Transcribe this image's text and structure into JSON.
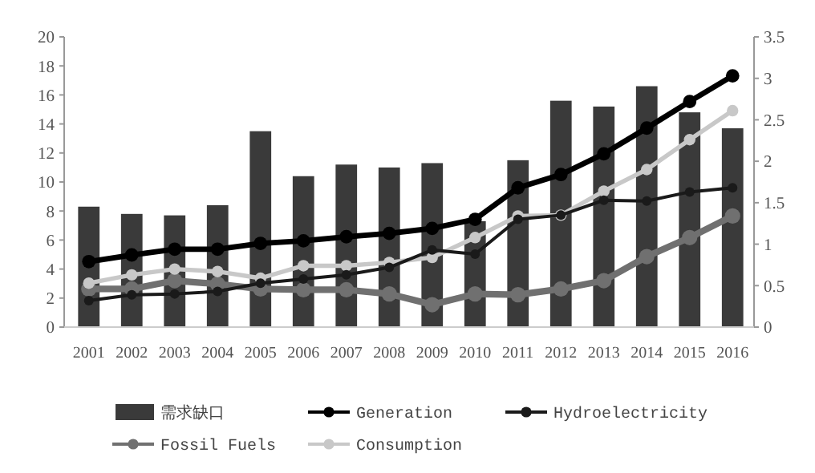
{
  "chart_data": {
    "type": "bar",
    "categories": [
      "2001",
      "2002",
      "2003",
      "2004",
      "2005",
      "2006",
      "2007",
      "2008",
      "2009",
      "2010",
      "2011",
      "2012",
      "2013",
      "2014",
      "2015",
      "2016"
    ],
    "ylim": [
      0,
      20
    ],
    "yticks": [
      0,
      2,
      4,
      6,
      8,
      10,
      12,
      14,
      16,
      18,
      20
    ],
    "y2lim": [
      0,
      3.5
    ],
    "y2ticks": [
      0,
      0.5,
      1,
      1.5,
      2,
      2.5,
      3,
      3.5
    ],
    "legend": "bottom",
    "grid": false,
    "marker": "circle",
    "series": [
      {
        "name": "需求缺口",
        "color": "#3a3a3a",
        "values": [
          8.3,
          7.8,
          7.7,
          8.4,
          13.5,
          10.4,
          11.2,
          11.0,
          11.3,
          7.3,
          11.5,
          15.6,
          15.2,
          16.6,
          14.8,
          13.7
        ]
      },
      {
        "name": "Fossil Fuels",
        "type": "line",
        "axis": "y2",
        "color": "#707070",
        "values": [
          0.46,
          0.46,
          0.56,
          0.52,
          0.46,
          0.45,
          0.45,
          0.4,
          0.27,
          0.4,
          0.39,
          0.46,
          0.56,
          0.85,
          1.08,
          1.34
        ]
      },
      {
        "name": "Generation",
        "type": "line",
        "axis": "y2",
        "color": "#000000",
        "values": [
          0.79,
          0.87,
          0.94,
          0.94,
          1.01,
          1.04,
          1.09,
          1.13,
          1.19,
          1.3,
          1.68,
          1.84,
          2.09,
          2.4,
          2.72,
          3.03
        ]
      },
      {
        "name": "Consumption",
        "type": "line",
        "axis": "y2",
        "color": "#c8c8c8",
        "values": [
          0.53,
          0.63,
          0.7,
          0.67,
          0.59,
          0.74,
          0.74,
          0.78,
          0.84,
          1.08,
          1.34,
          1.35,
          1.64,
          1.9,
          2.26,
          2.61
        ]
      },
      {
        "name": "Hydroelectricity",
        "type": "line",
        "axis": "y2",
        "color": "#1a1a1a",
        "values": [
          0.32,
          0.39,
          0.4,
          0.43,
          0.53,
          0.58,
          0.63,
          0.72,
          0.93,
          0.88,
          1.3,
          1.35,
          1.53,
          1.52,
          1.63,
          1.68
        ]
      }
    ]
  }
}
